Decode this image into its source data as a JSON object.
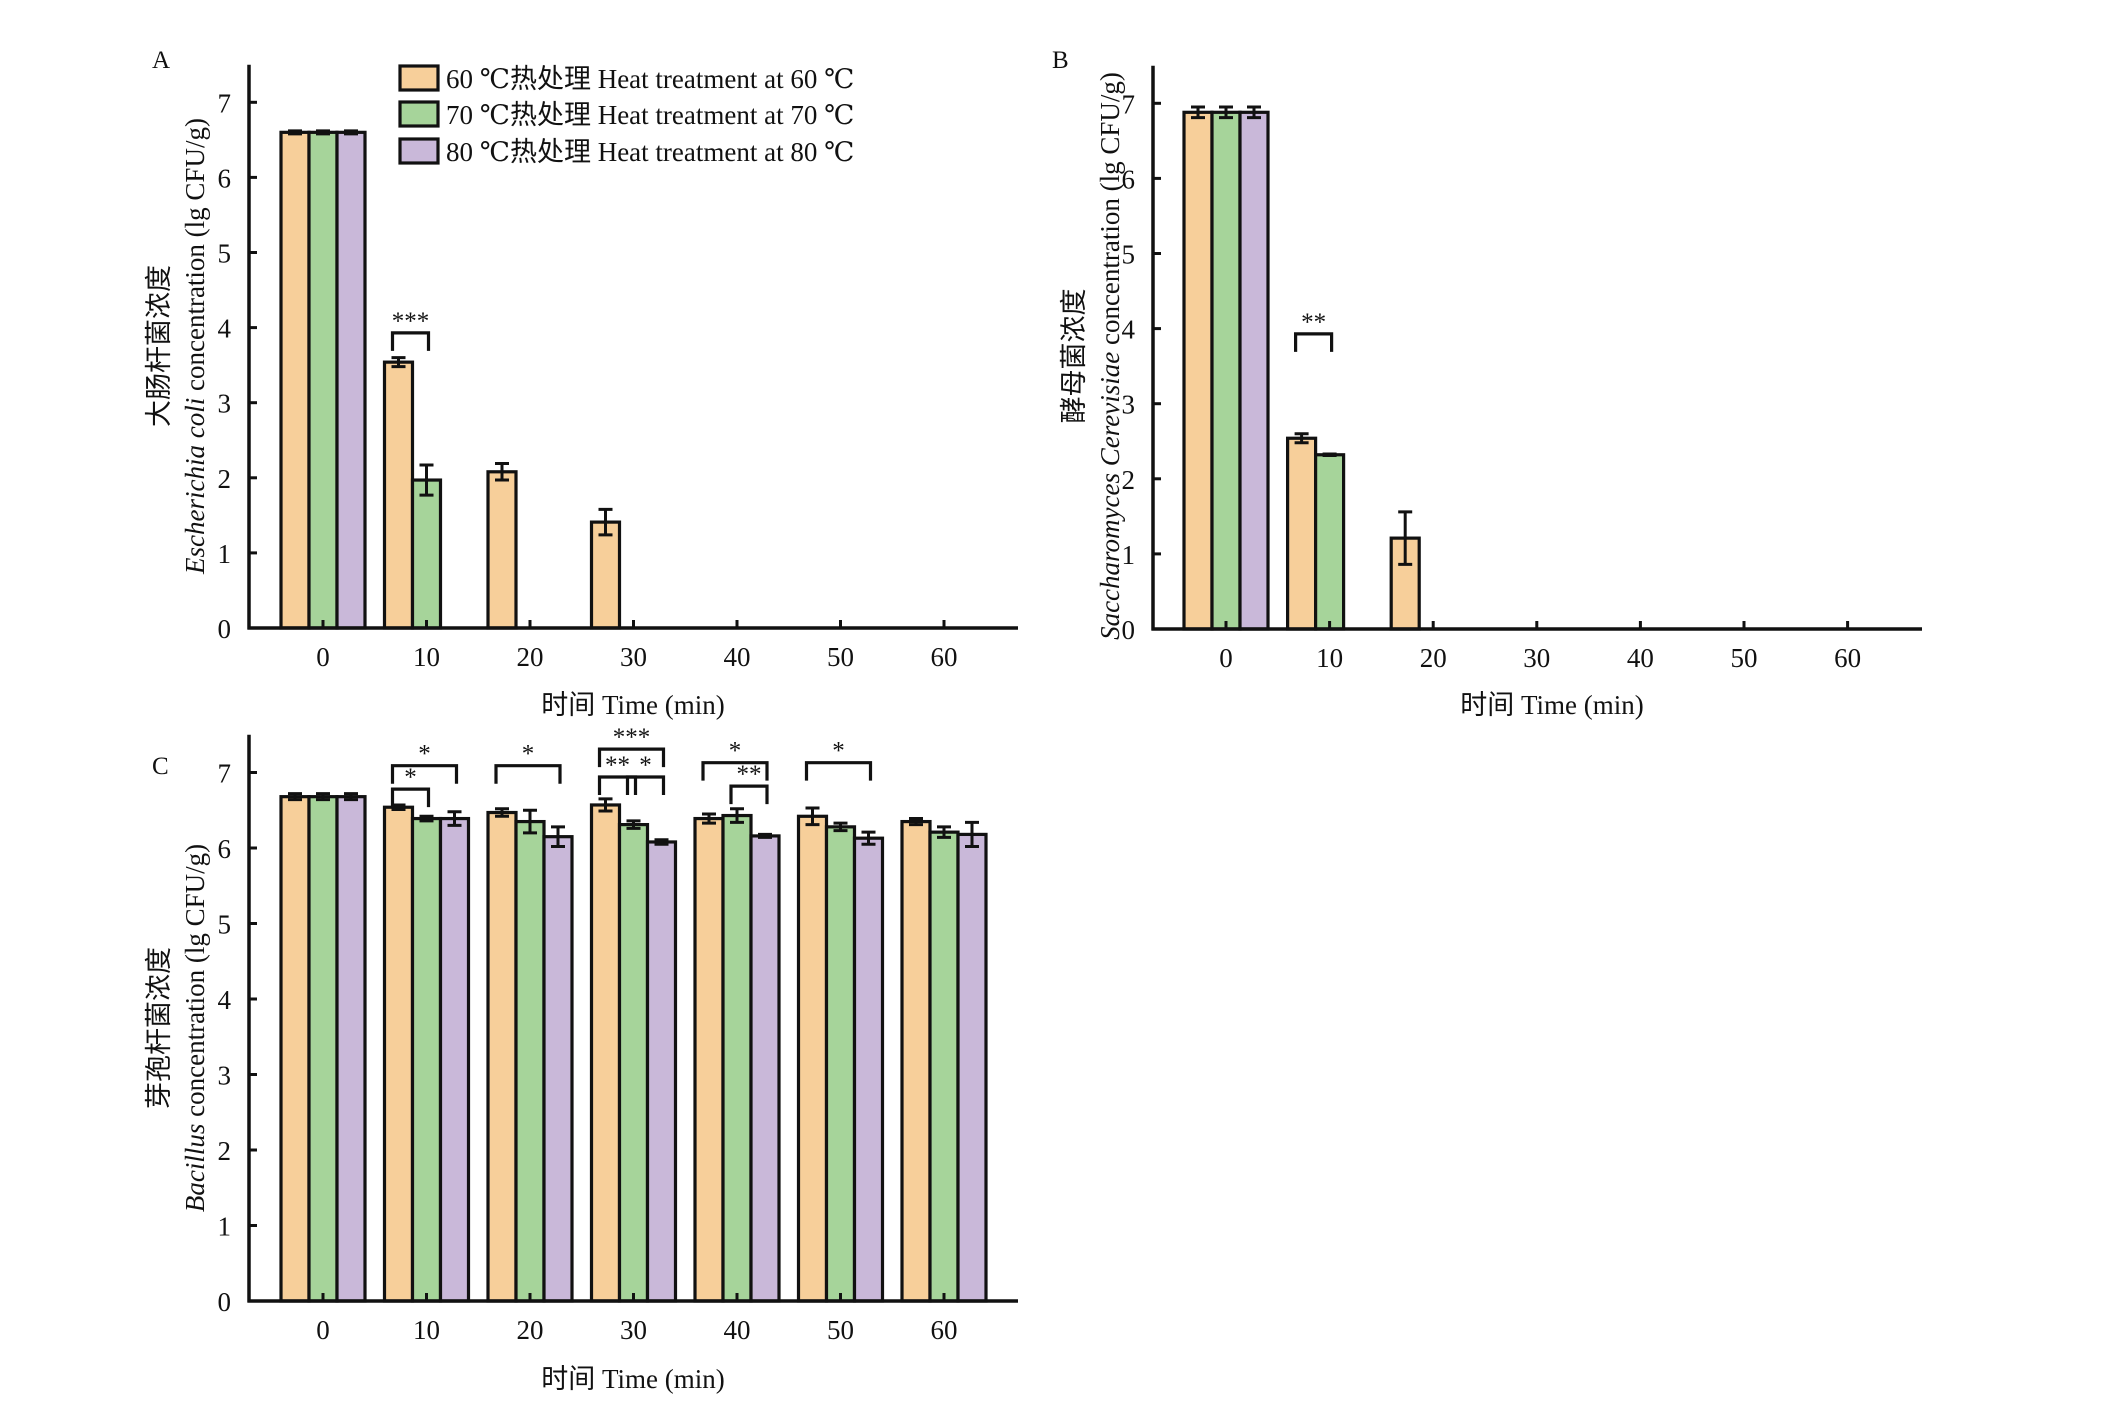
{
  "figure": {
    "legend": [
      {
        "series": "60",
        "label": "60 ℃热处理 Heat treatment at 60 ℃",
        "color": "#f7cf9a"
      },
      {
        "series": "70",
        "label": "70 ℃热处理 Heat treatment at 70 ℃",
        "color": "#a6d49a"
      },
      {
        "series": "80",
        "label": "80 ℃热处理 Heat treatment at 80 ℃",
        "color": "#c9b8d9"
      }
    ]
  },
  "chart_data": [
    {
      "panel": "A",
      "type": "bar",
      "title": "",
      "xlabel": "时间 Time (min)",
      "ylabel_cn": "大肠杆菌浓度",
      "ylabel_species": "Escherichia coli",
      "ylabel_rest": " concentration (lg CFU/g)",
      "categories": [
        "0",
        "10",
        "20",
        "30",
        "40",
        "50",
        "60"
      ],
      "x_values": [
        0,
        10,
        20,
        30,
        40,
        50,
        60
      ],
      "xlim": [
        -7.2,
        67.2
      ],
      "ylim": [
        0,
        7.5
      ],
      "yticks": [
        0,
        1,
        2,
        3,
        4,
        5,
        6,
        7
      ],
      "grid": false,
      "legend_position": "top-center",
      "series": [
        {
          "name": "60 ℃热处理 Heat treatment at 60 ℃",
          "values": [
            6.6,
            3.54,
            2.08,
            1.41,
            0,
            0,
            0
          ],
          "errors": [
            0.02,
            0.06,
            0.11,
            0.17,
            0,
            0,
            0
          ]
        },
        {
          "name": "70 ℃热处理 Heat treatment at 70 ℃",
          "values": [
            6.6,
            1.97,
            0,
            0,
            0,
            0,
            0
          ],
          "errors": [
            0.02,
            0.2,
            0,
            0,
            0,
            0,
            0
          ]
        },
        {
          "name": "80 ℃热处理 Heat treatment at 80 ℃",
          "values": [
            6.6,
            0,
            0,
            0,
            0,
            0,
            0
          ],
          "errors": [
            0.02,
            0,
            0,
            0,
            0,
            0,
            0
          ]
        }
      ],
      "significance": [
        {
          "category": "10",
          "from": 0,
          "to": 1,
          "label": "***",
          "y": 3.93
        }
      ]
    },
    {
      "panel": "B",
      "type": "bar",
      "title": "",
      "xlabel": "时间 Time (min)",
      "ylabel_cn": "酵母菌浓度",
      "ylabel_species": "Saccharomyces Cerevisiae",
      "ylabel_rest": " concentration (lg CFU/g)",
      "categories": [
        "0",
        "10",
        "20",
        "30",
        "40",
        "50",
        "60"
      ],
      "x_values": [
        0,
        10,
        20,
        30,
        40,
        50,
        60
      ],
      "xlim": [
        -7.2,
        67.2
      ],
      "ylim": [
        0,
        7.5
      ],
      "yticks": [
        0,
        1,
        2,
        3,
        4,
        5,
        6,
        7
      ],
      "grid": false,
      "series": [
        {
          "name": "60 ℃热处理 Heat treatment at 60 ℃",
          "values": [
            6.88,
            2.54,
            1.21,
            0,
            0,
            0,
            0
          ],
          "errors": [
            0.07,
            0.06,
            0.35,
            0,
            0,
            0,
            0
          ]
        },
        {
          "name": "70 ℃热处理 Heat treatment at 70 ℃",
          "values": [
            6.88,
            2.32,
            0,
            0,
            0,
            0,
            0
          ],
          "errors": [
            0.07,
            0.01,
            0,
            0,
            0,
            0,
            0
          ]
        },
        {
          "name": "80 ℃热处理 Heat treatment at 80 ℃",
          "values": [
            6.88,
            0,
            0,
            0,
            0,
            0,
            0
          ],
          "errors": [
            0.07,
            0,
            0,
            0,
            0,
            0,
            0
          ]
        }
      ],
      "significance": [
        {
          "category": "10",
          "from": 0,
          "to": 1,
          "label": "**",
          "y": 3.93
        }
      ]
    },
    {
      "panel": "C",
      "type": "bar",
      "title": "",
      "xlabel": "时间 Time (min)",
      "ylabel_cn": "芽孢杆菌浓度",
      "ylabel_species": "Bacillus",
      "ylabel_rest": " concentration (lg CFU/g)",
      "categories": [
        "0",
        "10",
        "20",
        "30",
        "40",
        "50",
        "60"
      ],
      "x_values": [
        0,
        10,
        20,
        30,
        40,
        50,
        60
      ],
      "xlim": [
        -7.2,
        67.2
      ],
      "ylim": [
        0,
        7.5
      ],
      "yticks": [
        0,
        1,
        2,
        3,
        4,
        5,
        6,
        7
      ],
      "grid": false,
      "series": [
        {
          "name": "60 ℃热处理 Heat treatment at 60 ℃",
          "values": [
            6.68,
            6.54,
            6.47,
            6.57,
            6.39,
            6.42,
            6.35
          ],
          "errors": [
            0.04,
            0.03,
            0.05,
            0.08,
            0.06,
            0.11,
            0.04
          ]
        },
        {
          "name": "70 ℃热处理 Heat treatment at 70 ℃",
          "values": [
            6.68,
            6.39,
            6.35,
            6.31,
            6.43,
            6.28,
            6.21
          ],
          "errors": [
            0.04,
            0.03,
            0.15,
            0.05,
            0.09,
            0.05,
            0.07
          ]
        },
        {
          "name": "80 ℃热处理 Heat treatment at 80 ℃",
          "values": [
            6.68,
            6.39,
            6.15,
            6.08,
            6.16,
            6.13,
            6.18
          ],
          "errors": [
            0.04,
            0.09,
            0.13,
            0.03,
            0.02,
            0.08,
            0.16
          ]
        }
      ],
      "significance": [
        {
          "category": "10",
          "from": 0,
          "to": 1,
          "label": "*",
          "y": 6.78
        },
        {
          "category": "10",
          "from": 0,
          "to": 2,
          "label": "*",
          "y": 7.09
        },
        {
          "category": "20",
          "from": 0,
          "to": 2,
          "label": "*",
          "y": 7.09
        },
        {
          "category": "30",
          "from": 0,
          "to": 1,
          "label": "**",
          "y": 6.94
        },
        {
          "category": "30",
          "from": 1,
          "to": 2,
          "label": "*",
          "y": 6.94
        },
        {
          "category": "30",
          "from": 0,
          "to": 2,
          "label": "***",
          "y": 7.31
        },
        {
          "category": "40",
          "from": 0,
          "to": 2,
          "label": "*",
          "y": 7.13
        },
        {
          "category": "40",
          "from": 1,
          "to": 2,
          "label": "**",
          "y": 6.82
        },
        {
          "category": "50",
          "from": 0,
          "to": 2,
          "label": "*",
          "y": 7.13
        }
      ]
    }
  ]
}
